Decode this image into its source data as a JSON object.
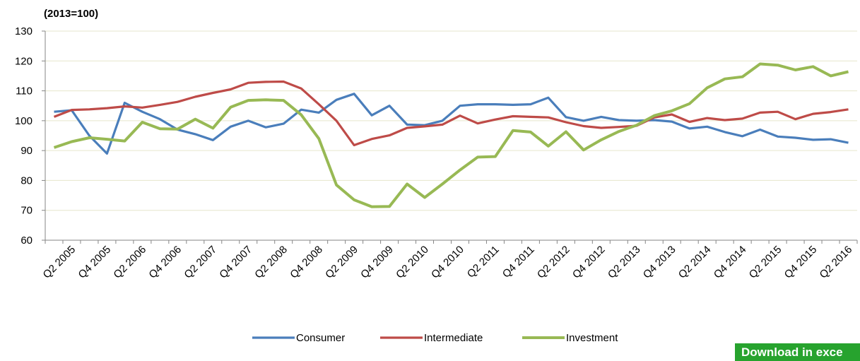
{
  "chart_data": {
    "type": "line",
    "y_label": "(2013=100)",
    "categories": [
      null,
      "Q2 2005",
      null,
      "Q4 2005",
      null,
      "Q2 2006",
      null,
      "Q4 2006",
      null,
      "Q2 2007",
      null,
      "Q4 2007",
      null,
      "Q2 2008",
      null,
      "Q4 2008",
      null,
      "Q2 2009",
      null,
      "Q4 2009",
      null,
      "Q2 2010",
      null,
      "Q4 2010",
      null,
      "Q2 2011",
      null,
      "Q4 2011",
      null,
      "Q2 2012",
      null,
      "Q4 2012",
      null,
      "Q2 2013",
      null,
      "Q4 2013",
      null,
      "Q2 2014",
      null,
      "Q4 2014",
      null,
      "Q2 2015",
      null,
      "Q4 2015",
      null,
      "Q2 2016"
    ],
    "series": [
      {
        "name": "Consumer",
        "color": "#4a7ebb",
        "values": [
          103,
          103.5,
          95,
          89,
          106,
          103,
          100.5,
          97,
          95.5,
          93.5,
          98,
          100,
          97.8,
          99,
          103.7,
          102.7,
          107,
          109,
          101.8,
          105,
          98.7,
          98.5,
          100,
          105,
          105.5,
          105.5,
          105.3,
          105.5,
          107.7,
          101.2,
          100,
          101.3,
          100.2,
          100,
          100.2,
          99.7,
          97.4,
          98,
          96.2,
          94.8,
          97,
          94.7,
          94.3,
          93.6,
          93.8,
          92.6
        ]
      },
      {
        "name": "Intermediate",
        "color": "#be4b48",
        "values": [
          101.3,
          103.6,
          103.8,
          104.2,
          104.8,
          104.4,
          105.3,
          106.3,
          108,
          109.3,
          110.5,
          112.7,
          113,
          113.1,
          110.8,
          105.5,
          100,
          91.8,
          93.9,
          95.1,
          97.6,
          98.1,
          98.7,
          101.7,
          99.1,
          100.4,
          101.5,
          101.3,
          101.1,
          99.5,
          98.2,
          97.6,
          97.9,
          98.3,
          101.1,
          102.1,
          99.6,
          100.9,
          100.2,
          100.7,
          102.7,
          103,
          100.5,
          102.3,
          102.9,
          103.8
        ]
      },
      {
        "name": "Investment",
        "color": "#98b954",
        "values": [
          91,
          93,
          94.3,
          93.8,
          93.2,
          99.5,
          97.3,
          97.2,
          100.5,
          97.5,
          104.5,
          106.8,
          107,
          106.8,
          102,
          94,
          78.5,
          73.5,
          71.2,
          71.3,
          78.8,
          74.3,
          78.8,
          83.5,
          87.8,
          88,
          96.7,
          96.2,
          91.5,
          96.3,
          90.2,
          93.6,
          96.4,
          98.5,
          101.7,
          103.3,
          105.7,
          111,
          114,
          114.7,
          119,
          118.6,
          117,
          118.1,
          115,
          116.4
        ]
      }
    ],
    "ylim": [
      60,
      130
    ],
    "yticks": [
      60,
      70,
      80,
      90,
      100,
      110,
      120,
      130
    ],
    "grid": true,
    "legend": "bottom"
  },
  "button": {
    "label": "Download in exce"
  }
}
